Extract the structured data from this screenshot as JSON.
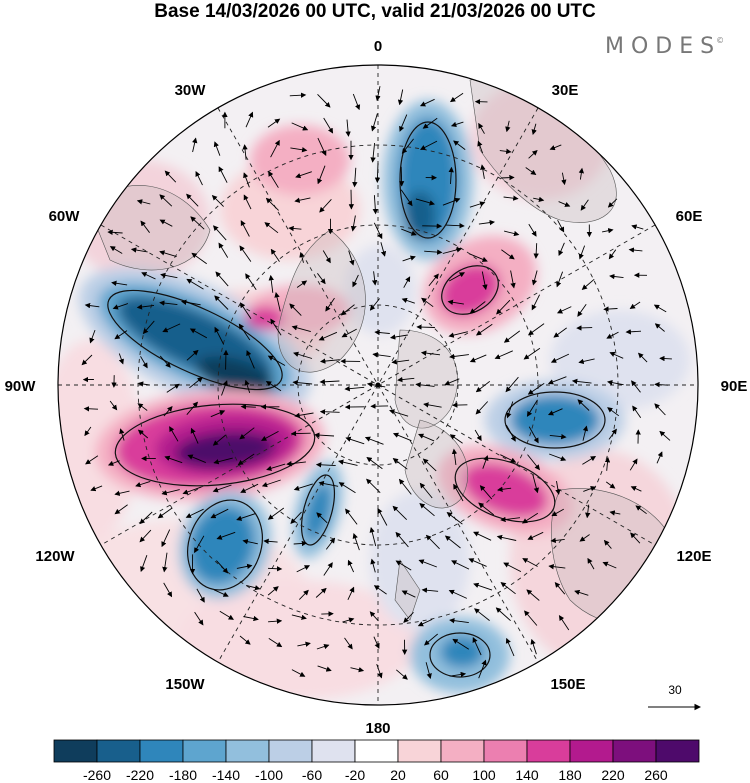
{
  "title": "Base 14/03/2026 00 UTC, valid 21/03/2026 00 UTC",
  "brand": "MODES",
  "brand_mark": "©",
  "longitude_labels": {
    "lon_0": "0",
    "lon_30e": "30E",
    "lon_60e": "60E",
    "lon_90e": "90E",
    "lon_120e": "120E",
    "lon_150e": "150E",
    "lon_180": "180",
    "lon_150w": "150W",
    "lon_120w": "120W",
    "lon_90w": "90W",
    "lon_60w": "60W",
    "lon_30w": "30W"
  },
  "reference_vector": {
    "label": "30"
  },
  "colorbar": {
    "colors": [
      "#0f3d5c",
      "#185f8c",
      "#2f86bb",
      "#5ea5cf",
      "#92bfdd",
      "#bccfe6",
      "#dfe2ef",
      "#ffffff",
      "#f8d4d8",
      "#f4afc3",
      "#ec7fb0",
      "#d93d9b",
      "#b31a8e",
      "#7d0f7d",
      "#4e0a6b"
    ],
    "ticks": [
      "-260",
      "-220",
      "-180",
      "-140",
      "-100",
      "-60",
      "-20",
      "20",
      "60",
      "100",
      "140",
      "180",
      "220",
      "260"
    ]
  }
}
